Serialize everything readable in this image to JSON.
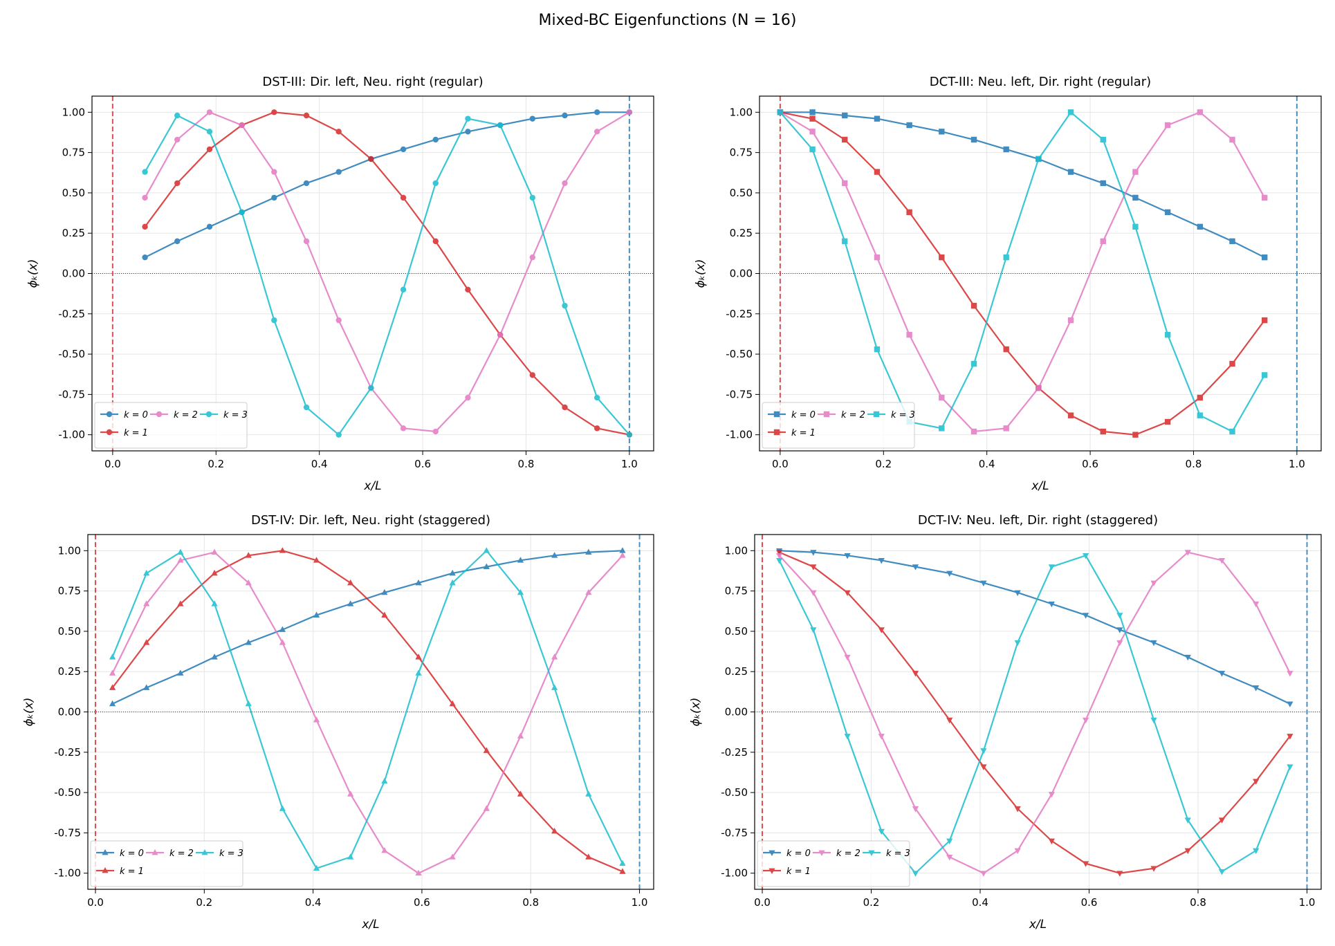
{
  "suptitle": "Mixed-BC Eigenfunctions (N = 16)",
  "colors": {
    "k0": "#1f77b4",
    "k1": "#d62728",
    "k2": "#e377c2",
    "k3": "#17becf",
    "left_bc_line": "#d62728",
    "right_bc_line": "#1f77b4"
  },
  "chart_data": [
    {
      "type": "line",
      "title": "DST-III: Dir. left, Neu. right (regular)",
      "xlabel": "x/L",
      "ylabel": "ϕₖ(x)",
      "xlim": [
        -0.04,
        1.047
      ],
      "ylim": [
        -1.1,
        1.1
      ],
      "xticks": [
        "0.0",
        "0.2",
        "0.4",
        "0.6",
        "0.8",
        "1.0"
      ],
      "yticks": [
        "-1.00",
        "-0.75",
        "-0.50",
        "-0.25",
        "0.00",
        "0.25",
        "0.50",
        "0.75",
        "1.00"
      ],
      "grid": true,
      "legend": "lower-left",
      "marker": "circle",
      "x": [
        0.0625,
        0.125,
        0.1875,
        0.25,
        0.3125,
        0.375,
        0.4375,
        0.5,
        0.5625,
        0.625,
        0.6875,
        0.75,
        0.8125,
        0.875,
        0.9375,
        1.0
      ],
      "series": [
        {
          "name": "k = 0",
          "values": [
            0.1,
            0.2,
            0.29,
            0.38,
            0.47,
            0.56,
            0.63,
            0.71,
            0.77,
            0.83,
            0.88,
            0.92,
            0.96,
            0.98,
            1.0,
            1.0
          ]
        },
        {
          "name": "k = 1",
          "values": [
            0.29,
            0.56,
            0.77,
            0.92,
            1.0,
            0.98,
            0.88,
            0.71,
            0.47,
            0.2,
            -0.1,
            -0.38,
            -0.63,
            -0.83,
            -0.96,
            -1.0
          ]
        },
        {
          "name": "k = 2",
          "values": [
            0.47,
            0.83,
            1.0,
            0.92,
            0.63,
            0.2,
            -0.29,
            -0.71,
            -0.96,
            -0.98,
            -0.77,
            -0.38,
            0.1,
            0.56,
            0.88,
            1.0
          ]
        },
        {
          "name": "k = 3",
          "values": [
            0.63,
            0.98,
            0.88,
            0.38,
            -0.29,
            -0.83,
            -1.0,
            -0.71,
            -0.1,
            0.56,
            0.96,
            0.92,
            0.47,
            -0.2,
            -0.77,
            -1.0
          ]
        }
      ]
    },
    {
      "type": "line",
      "title": "DCT-III: Neu. left, Dir. right (regular)",
      "xlabel": "x/L",
      "ylabel": "ϕₖ(x)",
      "xlim": [
        -0.04,
        1.047
      ],
      "ylim": [
        -1.1,
        1.1
      ],
      "xticks": [
        "0.0",
        "0.2",
        "0.4",
        "0.6",
        "0.8",
        "1.0"
      ],
      "yticks": [
        "-1.00",
        "-0.75",
        "-0.50",
        "-0.25",
        "0.00",
        "0.25",
        "0.50",
        "0.75",
        "1.00"
      ],
      "grid": true,
      "legend": "lower-left",
      "marker": "square",
      "x": [
        0.0,
        0.0625,
        0.125,
        0.1875,
        0.25,
        0.3125,
        0.375,
        0.4375,
        0.5,
        0.5625,
        0.625,
        0.6875,
        0.75,
        0.8125,
        0.875,
        0.9375
      ],
      "series": [
        {
          "name": "k = 0",
          "values": [
            1.0,
            1.0,
            0.98,
            0.96,
            0.92,
            0.88,
            0.83,
            0.77,
            0.71,
            0.63,
            0.56,
            0.47,
            0.38,
            0.29,
            0.2,
            0.1
          ]
        },
        {
          "name": "k = 1",
          "values": [
            1.0,
            0.96,
            0.83,
            0.63,
            0.38,
            0.1,
            -0.2,
            -0.47,
            -0.71,
            -0.88,
            -0.98,
            -1.0,
            -0.92,
            -0.77,
            -0.56,
            -0.29
          ]
        },
        {
          "name": "k = 2",
          "values": [
            1.0,
            0.88,
            0.56,
            0.1,
            -0.38,
            -0.77,
            -0.98,
            -0.96,
            -0.71,
            -0.29,
            0.2,
            0.63,
            0.92,
            1.0,
            0.83,
            0.47
          ]
        },
        {
          "name": "k = 3",
          "values": [
            1.0,
            0.77,
            0.2,
            -0.47,
            -0.92,
            -0.96,
            -0.56,
            0.1,
            0.71,
            1.0,
            0.83,
            0.29,
            -0.38,
            -0.88,
            -0.98,
            -0.63
          ]
        }
      ]
    },
    {
      "type": "line",
      "title": "DST-IV: Dir. left, Neu. right (staggered)",
      "xlabel": "x/L",
      "ylabel": "ϕₖ(x)",
      "xlim": [
        -0.014,
        1.026
      ],
      "ylim": [
        -1.1,
        1.1
      ],
      "xticks": [
        "0.0",
        "0.2",
        "0.4",
        "0.6",
        "0.8",
        "1.0"
      ],
      "yticks": [
        "-1.00",
        "-0.75",
        "-0.50",
        "-0.25",
        "0.00",
        "0.25",
        "0.50",
        "0.75",
        "1.00"
      ],
      "grid": true,
      "legend": "lower-left",
      "marker": "triangle-up",
      "x": [
        0.03125,
        0.09375,
        0.15625,
        0.21875,
        0.28125,
        0.34375,
        0.40625,
        0.46875,
        0.53125,
        0.59375,
        0.65625,
        0.71875,
        0.78125,
        0.84375,
        0.90625,
        0.96875
      ],
      "series": [
        {
          "name": "k = 0",
          "values": [
            0.05,
            0.15,
            0.24,
            0.34,
            0.43,
            0.51,
            0.6,
            0.67,
            0.74,
            0.8,
            0.86,
            0.9,
            0.94,
            0.97,
            0.99,
            1.0
          ]
        },
        {
          "name": "k = 1",
          "values": [
            0.15,
            0.43,
            0.67,
            0.86,
            0.97,
            1.0,
            0.94,
            0.8,
            0.6,
            0.34,
            0.05,
            -0.24,
            -0.51,
            -0.74,
            -0.9,
            -0.99
          ]
        },
        {
          "name": "k = 2",
          "values": [
            0.24,
            0.67,
            0.94,
            0.99,
            0.8,
            0.43,
            -0.05,
            -0.51,
            -0.86,
            -1.0,
            -0.9,
            -0.6,
            -0.15,
            0.34,
            0.74,
            0.97
          ]
        },
        {
          "name": "k = 3",
          "values": [
            0.34,
            0.86,
            0.99,
            0.67,
            0.05,
            -0.6,
            -0.97,
            -0.9,
            -0.43,
            0.24,
            0.8,
            1.0,
            0.74,
            0.15,
            -0.51,
            -0.94
          ]
        }
      ]
    },
    {
      "type": "line",
      "title": "DCT-IV: Neu. left, Dir. right (staggered)",
      "xlabel": "x/L",
      "ylabel": "ϕₖ(x)",
      "xlim": [
        -0.014,
        1.026
      ],
      "ylim": [
        -1.1,
        1.1
      ],
      "xticks": [
        "0.0",
        "0.2",
        "0.4",
        "0.6",
        "0.8",
        "1.0"
      ],
      "yticks": [
        "-1.00",
        "-0.75",
        "-0.50",
        "-0.25",
        "0.00",
        "0.25",
        "0.50",
        "0.75",
        "1.00"
      ],
      "grid": true,
      "legend": "lower-left",
      "marker": "triangle-down",
      "x": [
        0.03125,
        0.09375,
        0.15625,
        0.21875,
        0.28125,
        0.34375,
        0.40625,
        0.46875,
        0.53125,
        0.59375,
        0.65625,
        0.71875,
        0.78125,
        0.84375,
        0.90625,
        0.96875
      ],
      "series": [
        {
          "name": "k = 0",
          "values": [
            1.0,
            0.99,
            0.97,
            0.94,
            0.9,
            0.86,
            0.8,
            0.74,
            0.67,
            0.6,
            0.51,
            0.43,
            0.34,
            0.24,
            0.15,
            0.05
          ]
        },
        {
          "name": "k = 1",
          "values": [
            0.99,
            0.9,
            0.74,
            0.51,
            0.24,
            -0.05,
            -0.34,
            -0.6,
            -0.8,
            -0.94,
            -1.0,
            -0.97,
            -0.86,
            -0.67,
            -0.43,
            -0.15
          ]
        },
        {
          "name": "k = 2",
          "values": [
            0.97,
            0.74,
            0.34,
            -0.15,
            -0.6,
            -0.9,
            -1.0,
            -0.86,
            -0.51,
            -0.05,
            0.43,
            0.8,
            0.99,
            0.94,
            0.67,
            0.24
          ]
        },
        {
          "name": "k = 3",
          "values": [
            0.94,
            0.51,
            -0.15,
            -0.74,
            -1.0,
            -0.8,
            -0.24,
            0.43,
            0.9,
            0.97,
            0.6,
            -0.05,
            -0.67,
            -0.99,
            -0.86,
            -0.34
          ]
        }
      ]
    }
  ]
}
